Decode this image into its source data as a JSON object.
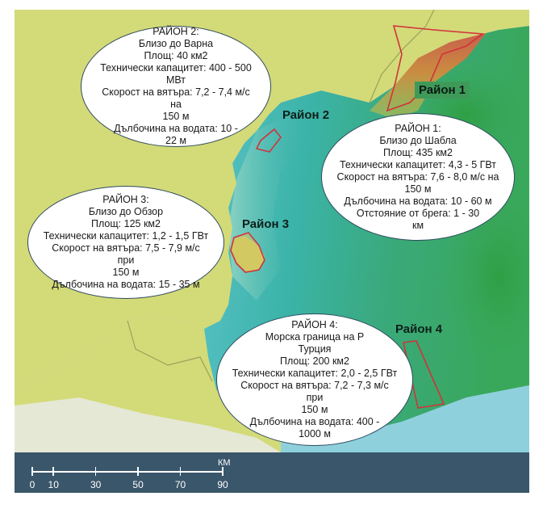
{
  "colors": {
    "land": "#d3da78",
    "sea_light": "#8fd0dd",
    "sea_teal": "#3bb3a8",
    "sea_green": "#39a85a",
    "zone_outline": "#d2323c",
    "scalebar_bg": "#3a566b"
  },
  "zones": [
    {
      "id": "zone1",
      "label": "Район 1"
    },
    {
      "id": "zone2",
      "label": "Район 2"
    },
    {
      "id": "zone3",
      "label": "Район 3"
    },
    {
      "id": "zone4",
      "label": "Район 4"
    }
  ],
  "callouts": {
    "varna": [
      "РАЙОН 2:",
      "Близо до Варна",
      "Площ: 40 км2",
      "Технически капацитет: 400 - 500",
      "МВт",
      "Скорост на вятъра: 7,2 - 7,4 м/с на",
      "150 м",
      "Дълбочина на водата: 10 -",
      "22 м"
    ],
    "shabla": [
      "РАЙОН 1:",
      "Близо до Шабла",
      "Площ: 435 км2",
      "Технически капацитет: 4,3 - 5 ГВт",
      "Скорост на вятъра: 7,6 - 8,0 м/с на",
      "150 м",
      "Дълбочина на водата: 10 - 60 м",
      "Отстояние от брега: 1 - 30",
      "км"
    ],
    "obzor": [
      "РАЙОН 3:",
      "Близо до Обзор",
      "Площ: 125 км2",
      "Технически капацитет: 1,2 - 1,5 ГВт",
      "Скорост на вятъра: 7,5 - 7,9 м/с при",
      "150 м",
      "Дълбочина на водата: 15 - 35 м"
    ],
    "turkey": [
      "РАЙОН 4:",
      "Морска граница на Р",
      "Турция",
      "Площ: 200 км2",
      "Технически капацитет: 2,0 - 2,5 ГВт",
      "Скорост на вятъра: 7,2 - 7,3 м/с при",
      "150 м",
      "Дълбочина на водата: 400 -",
      "1000 м"
    ]
  },
  "scale": {
    "unit": "КМ",
    "ticks": [
      "0",
      "10",
      "30",
      "50",
      "70",
      "90"
    ],
    "tick_values": [
      0,
      10,
      30,
      50,
      70,
      90
    ]
  }
}
